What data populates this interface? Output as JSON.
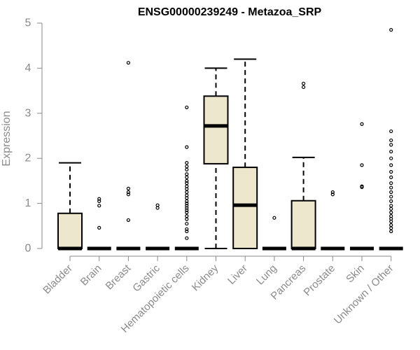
{
  "chart_data": {
    "type": "box",
    "title": "ENSG00000239249 - Metazoa_SRP",
    "xlabel": "",
    "ylabel": "Expression",
    "ylim": [
      0,
      5
    ],
    "yticks": [
      0,
      1,
      2,
      3,
      4,
      5
    ],
    "box_fill": "#ede7cd",
    "categories": [
      "Bladder",
      "Brain",
      "Breast",
      "Gastric",
      "Hematopoietic cells",
      "Kidney",
      "Liver",
      "Lung",
      "Pancreas",
      "Prostate",
      "Skin",
      "Unknown / Other"
    ],
    "boxes": [
      {
        "name": "Bladder",
        "min": 0,
        "q1": 0,
        "median": 0,
        "q3": 0.78,
        "max": 1.9,
        "outliers": []
      },
      {
        "name": "Brain",
        "min": 0,
        "q1": 0,
        "median": 0,
        "q3": 0,
        "max": 0,
        "outliers": [
          0.46,
          0.95,
          1.05,
          1.1
        ]
      },
      {
        "name": "Breast",
        "min": 0,
        "q1": 0,
        "median": 0,
        "q3": 0,
        "max": 0,
        "outliers": [
          0.63,
          1.2,
          1.25,
          1.33,
          4.12
        ]
      },
      {
        "name": "Gastric",
        "min": 0,
        "q1": 0,
        "median": 0,
        "q3": 0,
        "max": 0,
        "outliers": [
          0.9,
          0.96
        ]
      },
      {
        "name": "Hematopoietic cells",
        "min": 0,
        "q1": 0,
        "median": 0,
        "q3": 0,
        "max": 0,
        "outliers": [
          0.23,
          0.38,
          0.43,
          0.55,
          0.65,
          0.72,
          0.8,
          0.85,
          0.9,
          0.95,
          1.0,
          1.05,
          1.12,
          1.18,
          1.25,
          1.32,
          1.38,
          1.45,
          1.5,
          1.58,
          1.65,
          1.75,
          1.82,
          1.9,
          2.25,
          3.13
        ]
      },
      {
        "name": "Kidney",
        "min": 0,
        "q1": 1.88,
        "median": 2.72,
        "q3": 3.38,
        "max": 4.0,
        "outliers": []
      },
      {
        "name": "Liver",
        "min": 0,
        "q1": 0,
        "median": 0.96,
        "q3": 1.8,
        "max": 4.2,
        "outliers": []
      },
      {
        "name": "Lung",
        "min": 0,
        "q1": 0,
        "median": 0,
        "q3": 0,
        "max": 0,
        "outliers": [
          0.68
        ]
      },
      {
        "name": "Pancreas",
        "min": 0,
        "q1": 0,
        "median": 0,
        "q3": 1.06,
        "max": 2.02,
        "outliers": [
          3.58,
          3.66
        ]
      },
      {
        "name": "Prostate",
        "min": 0,
        "q1": 0,
        "median": 0,
        "q3": 0,
        "max": 0,
        "outliers": [
          1.2,
          1.25
        ]
      },
      {
        "name": "Skin",
        "min": 0,
        "q1": 0,
        "median": 0,
        "q3": 0,
        "max": 0,
        "outliers": [
          1.36,
          1.38,
          1.85,
          2.76
        ]
      },
      {
        "name": "Unknown / Other",
        "min": 0,
        "q1": 0,
        "median": 0,
        "q3": 0,
        "max": 0,
        "outliers": [
          0.38,
          0.45,
          0.52,
          0.6,
          0.66,
          0.72,
          0.8,
          0.88,
          0.95,
          1.05,
          1.15,
          1.25,
          1.35,
          1.45,
          1.58,
          1.7,
          1.85,
          2.0,
          2.15,
          2.3,
          2.4,
          2.6,
          4.85
        ]
      }
    ]
  }
}
